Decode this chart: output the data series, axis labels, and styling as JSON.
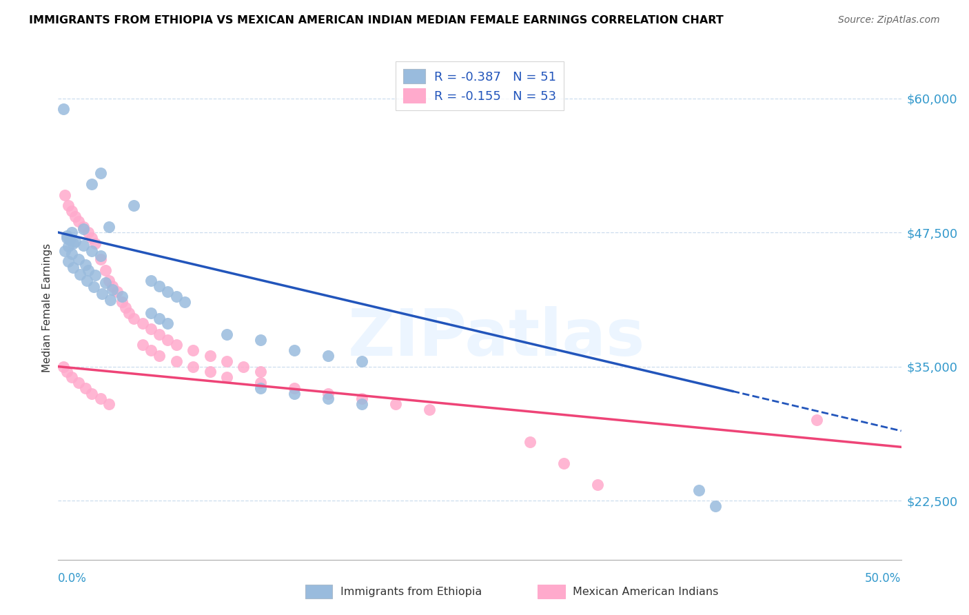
{
  "title": "IMMIGRANTS FROM ETHIOPIA VS MEXICAN AMERICAN INDIAN MEDIAN FEMALE EARNINGS CORRELATION CHART",
  "source": "Source: ZipAtlas.com",
  "ylabel": "Median Female Earnings",
  "yticks": [
    22500,
    35000,
    47500,
    60000
  ],
  "ytick_labels": [
    "$22,500",
    "$35,000",
    "$47,500",
    "$60,000"
  ],
  "xlim": [
    0.0,
    0.5
  ],
  "ylim": [
    17000,
    64000
  ],
  "blue_color": "#99BBDD",
  "pink_color": "#FFAACC",
  "trendline_blue_color": "#2255BB",
  "trendline_pink_color": "#EE4477",
  "ytick_color": "#3399CC",
  "grid_color": "#CCDDEE",
  "watermark": "ZIPatlas",
  "legend_r1": "R = -0.387",
  "legend_n1": "N = 51",
  "legend_r2": "R = -0.155",
  "legend_n2": "N = 53",
  "legend_text_color": "#2255BB",
  "blue_x": [
    0.003,
    0.025,
    0.02,
    0.045,
    0.03,
    0.015,
    0.008,
    0.005,
    0.007,
    0.009,
    0.006,
    0.004,
    0.008,
    0.012,
    0.016,
    0.005,
    0.01,
    0.015,
    0.02,
    0.025,
    0.018,
    0.022,
    0.028,
    0.032,
    0.038,
    0.055,
    0.06,
    0.065,
    0.07,
    0.075,
    0.055,
    0.06,
    0.065,
    0.1,
    0.12,
    0.14,
    0.16,
    0.18,
    0.12,
    0.14,
    0.16,
    0.18,
    0.38,
    0.39,
    0.006,
    0.009,
    0.013,
    0.017,
    0.021,
    0.026,
    0.031
  ],
  "blue_y": [
    59000,
    53000,
    52000,
    50000,
    48000,
    47800,
    47500,
    47200,
    46800,
    46500,
    46200,
    45800,
    45500,
    45000,
    44500,
    47000,
    46700,
    46300,
    45800,
    45300,
    44000,
    43500,
    42800,
    42200,
    41500,
    43000,
    42500,
    42000,
    41500,
    41000,
    40000,
    39500,
    39000,
    38000,
    37500,
    36500,
    36000,
    35500,
    33000,
    32500,
    32000,
    31500,
    23500,
    22000,
    44800,
    44200,
    43600,
    43000,
    42400,
    41800,
    41200
  ],
  "pink_x": [
    0.004,
    0.006,
    0.008,
    0.01,
    0.012,
    0.015,
    0.018,
    0.02,
    0.022,
    0.025,
    0.028,
    0.03,
    0.032,
    0.035,
    0.038,
    0.04,
    0.042,
    0.045,
    0.05,
    0.055,
    0.06,
    0.065,
    0.07,
    0.08,
    0.09,
    0.1,
    0.11,
    0.12,
    0.05,
    0.055,
    0.06,
    0.07,
    0.08,
    0.09,
    0.1,
    0.12,
    0.14,
    0.16,
    0.18,
    0.2,
    0.22,
    0.003,
    0.005,
    0.008,
    0.012,
    0.016,
    0.02,
    0.025,
    0.03,
    0.45,
    0.28,
    0.3,
    0.32
  ],
  "pink_y": [
    51000,
    50000,
    49500,
    49000,
    48500,
    48000,
    47500,
    47000,
    46500,
    45000,
    44000,
    43000,
    42500,
    42000,
    41000,
    40500,
    40000,
    39500,
    39000,
    38500,
    38000,
    37500,
    37000,
    36500,
    36000,
    35500,
    35000,
    34500,
    37000,
    36500,
    36000,
    35500,
    35000,
    34500,
    34000,
    33500,
    33000,
    32500,
    32000,
    31500,
    31000,
    35000,
    34500,
    34000,
    33500,
    33000,
    32500,
    32000,
    31500,
    30000,
    28000,
    26000,
    24000
  ],
  "blue_trendline_x0": 0.0,
  "blue_trendline_x_solid_end": 0.4,
  "blue_trendline_x_end": 0.5,
  "pink_trendline_x0": 0.0,
  "pink_trendline_x_end": 0.5
}
